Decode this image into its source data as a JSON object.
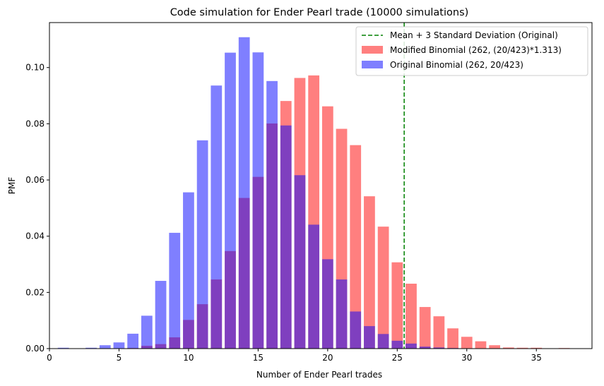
{
  "chart_data": {
    "type": "bar",
    "title": "Code simulation for Ender Pearl trade (10000 simulations)",
    "xlabel": "Number of Ender Pearl trades",
    "ylabel": "PMF",
    "xlim": [
      0,
      39
    ],
    "ylim": [
      0,
      0.116
    ],
    "xticks": [
      "0",
      "5",
      "10",
      "15",
      "20",
      "25",
      "30",
      "35"
    ],
    "yticks": [
      "0.00",
      "0.02",
      "0.04",
      "0.06",
      "0.08",
      "0.10"
    ],
    "grid": false,
    "legend_position": "top-right",
    "x": [
      1,
      2,
      3,
      4,
      5,
      6,
      7,
      8,
      9,
      10,
      11,
      12,
      13,
      14,
      15,
      16,
      17,
      18,
      19,
      20,
      21,
      22,
      23,
      24,
      25,
      26,
      27,
      28,
      29,
      30,
      31,
      32,
      33,
      34,
      35,
      36,
      37,
      38
    ],
    "series": [
      {
        "name": "Modified Binomial (262, (20/423)*1.313)",
        "color": "#ff0000",
        "opacity": 0.5,
        "values": [
          0,
          0,
          0,
          0,
          0,
          0.0002,
          0.001,
          0.0016,
          0.004,
          0.0102,
          0.0158,
          0.0246,
          0.0347,
          0.0536,
          0.0611,
          0.0801,
          0.0881,
          0.0963,
          0.0972,
          0.0862,
          0.0782,
          0.0724,
          0.0542,
          0.0434,
          0.0307,
          0.0231,
          0.0148,
          0.0115,
          0.0072,
          0.0042,
          0.0026,
          0.0012,
          0.0004,
          0.0003,
          0.0003,
          0.0001,
          0.0002,
          0
        ]
      },
      {
        "name": "Original Binomial (262, 20/423)",
        "color": "#0000ff",
        "opacity": 0.5,
        "values": [
          0.0003,
          0,
          0.0003,
          0.0012,
          0.0022,
          0.0053,
          0.0117,
          0.0241,
          0.0412,
          0.0556,
          0.0741,
          0.0936,
          0.1053,
          0.1108,
          0.1054,
          0.0952,
          0.0794,
          0.0617,
          0.0441,
          0.0318,
          0.0246,
          0.0132,
          0.008,
          0.0052,
          0.0028,
          0.0018,
          0.0007,
          0.0004,
          0.0002,
          0.0001,
          0,
          0,
          0,
          0,
          0,
          0,
          0,
          0
        ]
      }
    ],
    "reference_line": {
      "label": "Mean + 3 Standard Deviation (Original)",
      "x": 25.5,
      "color": "#008000",
      "style": "dashed"
    }
  }
}
